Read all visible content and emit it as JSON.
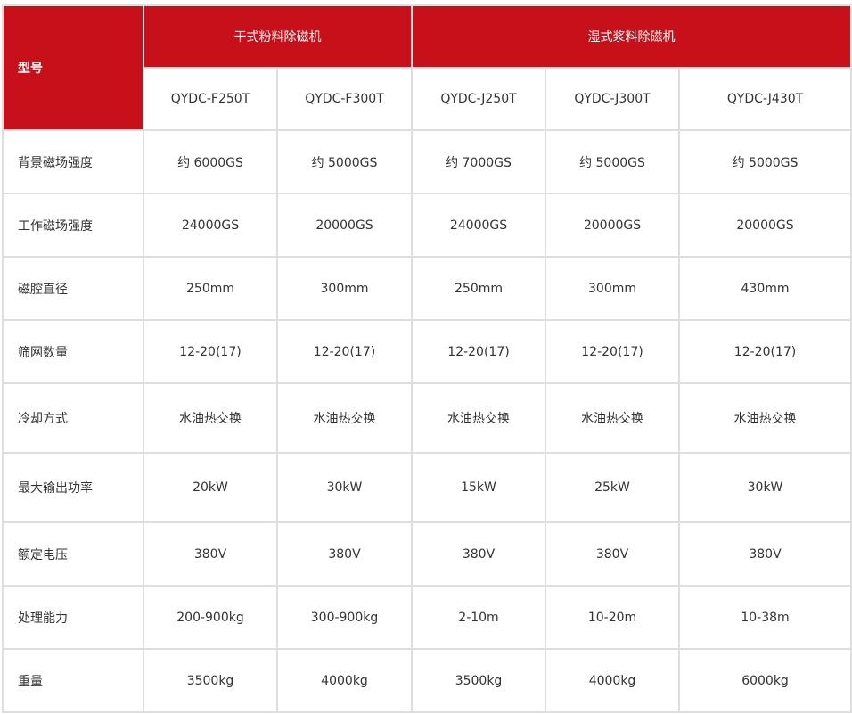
{
  "header": {
    "corner": "型号",
    "groups": [
      "干式粉料除磁机",
      "湿式浆料除磁机"
    ],
    "models": [
      "QYDC-F250T",
      "QYDC-F300T",
      "QYDC-J250T",
      "QYDC-J300T",
      "QYDC-J430T"
    ]
  },
  "rows": [
    {
      "label": "背景磁场强度",
      "values": [
        "约 6000GS",
        "约 5000GS",
        "约 7000GS",
        "约 5000GS",
        "约 5000GS"
      ]
    },
    {
      "label": "工作磁场强度",
      "values": [
        "24000GS",
        "20000GS",
        "24000GS",
        "20000GS",
        "20000GS"
      ]
    },
    {
      "label": "磁腔直径",
      "values": [
        "250mm",
        "300mm",
        "250mm",
        "300mm",
        "430mm"
      ]
    },
    {
      "label": "筛网数量",
      "values": [
        "12-20(17)",
        "12-20(17)",
        "12-20(17)",
        "12-20(17)",
        "12-20(17)"
      ]
    },
    {
      "label": "冷却方式",
      "values": [
        "水油热交换",
        "水油热交换",
        "水油热交换",
        "水油热交换",
        "水油热交换"
      ]
    },
    {
      "label": "最大输出功率",
      "values": [
        "20kW",
        "30kW",
        "15kW",
        "25kW",
        "30kW"
      ]
    },
    {
      "label": "额定电压",
      "values": [
        "380V",
        "380V",
        "380V",
        "380V",
        "380V"
      ]
    },
    {
      "label": "处理能力",
      "values": [
        "200-900kg",
        "300-900kg",
        "2-10m",
        "10-20m",
        "10-38m"
      ]
    },
    {
      "label": "重量",
      "values": [
        "3500kg",
        "4000kg",
        "3500kg",
        "4000kg",
        "6000kg"
      ]
    }
  ],
  "colors": {
    "header_red": "#c8101a",
    "border": "#dedede"
  }
}
